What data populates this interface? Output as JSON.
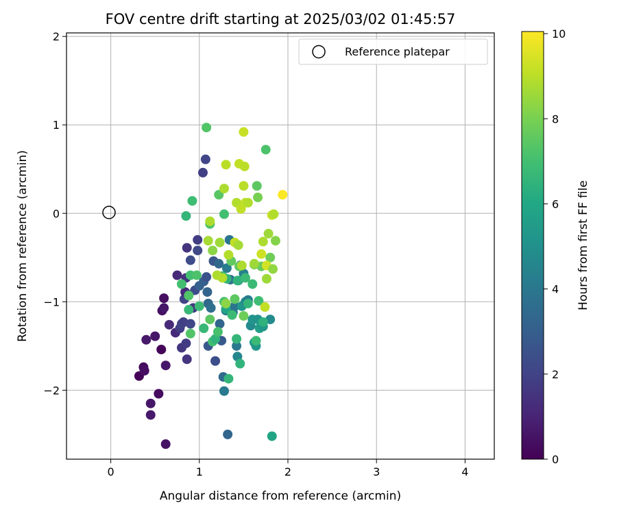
{
  "chart_data": {
    "type": "scatter",
    "title": "FOV centre drift starting at 2025/03/02 01:45:57",
    "xlabel": "Angular distance from reference (arcmin)",
    "ylabel": "Rotation from reference (arcmin)",
    "xlim": [
      -0.5,
      4.33
    ],
    "ylim": [
      -2.78,
      2.04
    ],
    "xticks": [
      0,
      1,
      2,
      3,
      4
    ],
    "yticks": [
      -2,
      -1,
      0,
      1,
      2
    ],
    "xtick_labels": [
      "0",
      "1",
      "2",
      "3",
      "4"
    ],
    "ytick_labels": [
      "−2",
      "−1",
      "0",
      "1",
      "2"
    ],
    "grid": true,
    "legend": {
      "position": "top-right",
      "label": "Reference platepar"
    },
    "reference_point": {
      "x": 0,
      "y": 0
    },
    "colorbar": {
      "label": "Hours from first FF file",
      "colormap": "viridis",
      "range": [
        0,
        10.05
      ],
      "ticks": [
        0,
        2,
        4,
        6,
        8,
        10
      ],
      "tick_labels": [
        "0",
        "2",
        "4",
        "6",
        "8",
        "10"
      ]
    },
    "points": [
      [
        0.32,
        -1.84,
        0.05
      ],
      [
        0.37,
        -1.74,
        0.3
      ],
      [
        0.38,
        -1.78,
        0.4
      ],
      [
        0.4,
        -1.43,
        0.7
      ],
      [
        0.45,
        -2.15,
        0.6
      ],
      [
        0.45,
        -2.28,
        0.7
      ],
      [
        0.5,
        -1.39,
        0.6
      ],
      [
        0.54,
        -2.04,
        0.3
      ],
      [
        0.57,
        -1.54,
        0.1
      ],
      [
        0.58,
        -1.1,
        0.4
      ],
      [
        0.6,
        -0.96,
        0.4
      ],
      [
        0.6,
        -1.07,
        0.6
      ],
      [
        0.62,
        -2.61,
        0.5
      ],
      [
        0.62,
        -1.72,
        0.6
      ],
      [
        0.66,
        -1.26,
        1.2
      ],
      [
        0.73,
        -1.35,
        1.2
      ],
      [
        0.75,
        -0.7,
        1.2
      ],
      [
        0.78,
        -1.3,
        1.8
      ],
      [
        0.8,
        -1.25,
        2.0
      ],
      [
        0.8,
        -1.52,
        1.6
      ],
      [
        0.82,
        -1.23,
        1.9
      ],
      [
        0.83,
        -0.97,
        2.0
      ],
      [
        0.84,
        -0.89,
        1.2
      ],
      [
        0.85,
        -0.73,
        1.5
      ],
      [
        0.85,
        -1.47,
        1.8
      ],
      [
        0.86,
        -1.65,
        1.5
      ],
      [
        0.86,
        -0.39,
        1.5
      ],
      [
        0.9,
        -0.53,
        2.3
      ],
      [
        0.9,
        -1.25,
        2.1
      ],
      [
        0.88,
        -0.92,
        2.0
      ],
      [
        0.93,
        -1.07,
        1.6
      ],
      [
        0.95,
        -0.87,
        2.3
      ],
      [
        0.98,
        -0.3,
        1.8
      ],
      [
        0.98,
        -0.42,
        2.2
      ],
      [
        1.0,
        -0.82,
        3.1
      ],
      [
        1.04,
        0.46,
        1.9
      ],
      [
        1.05,
        -0.77,
        3.0
      ],
      [
        1.07,
        0.61,
        2.1
      ],
      [
        1.08,
        -0.72,
        2.5
      ],
      [
        1.09,
        -0.89,
        3.2
      ],
      [
        1.1,
        -1.5,
        2.7
      ],
      [
        1.1,
        -1.02,
        3.4
      ],
      [
        1.13,
        -1.07,
        3.6
      ],
      [
        1.16,
        -0.54,
        2.7
      ],
      [
        1.18,
        -1.67,
        2.4
      ],
      [
        1.22,
        -0.57,
        3.4
      ],
      [
        1.23,
        -1.25,
        3.3
      ],
      [
        1.25,
        -1.44,
        2.8
      ],
      [
        1.27,
        -1.85,
        3.5
      ],
      [
        1.28,
        -2.01,
        4.1
      ],
      [
        1.3,
        -1.1,
        4.1
      ],
      [
        1.31,
        -0.62,
        4.2
      ],
      [
        1.32,
        -2.5,
        3.3
      ],
      [
        1.34,
        -0.3,
        3.8
      ],
      [
        1.35,
        -0.75,
        3.7
      ],
      [
        1.38,
        -1.12,
        4.2
      ],
      [
        1.4,
        -1.05,
        3.9
      ],
      [
        1.42,
        -1.5,
        4.0
      ],
      [
        1.43,
        -1.62,
        4.6
      ],
      [
        1.44,
        -0.76,
        4.5
      ],
      [
        1.46,
        -0.59,
        3.3
      ],
      [
        1.48,
        -1.05,
        5.3
      ],
      [
        1.5,
        -0.68,
        4.4
      ],
      [
        1.52,
        -1.0,
        4.7
      ],
      [
        1.55,
        -0.98,
        4.2
      ],
      [
        1.58,
        -1.27,
        4.8
      ],
      [
        1.6,
        -1.2,
        5.2
      ],
      [
        1.62,
        -1.46,
        5.4
      ],
      [
        1.64,
        -1.5,
        5.3
      ],
      [
        1.66,
        -1.2,
        5.1
      ],
      [
        1.68,
        -1.3,
        5.6
      ],
      [
        1.7,
        -1.25,
        5.4
      ],
      [
        1.72,
        -1.28,
        5.3
      ],
      [
        1.8,
        -1.2,
        4.8
      ],
      [
        1.82,
        -2.52,
        5.9
      ],
      [
        0.8,
        -0.8,
        7.0
      ],
      [
        0.85,
        -0.03,
        6.6
      ],
      [
        0.88,
        -0.93,
        7.3
      ],
      [
        0.88,
        -1.09,
        6.7
      ],
      [
        0.9,
        -0.7,
        7.0
      ],
      [
        0.9,
        -1.36,
        7.3
      ],
      [
        0.92,
        0.14,
        6.9
      ],
      [
        0.97,
        -0.7,
        7.2
      ],
      [
        1.0,
        -1.05,
        6.8
      ],
      [
        1.05,
        -1.3,
        6.7
      ],
      [
        1.08,
        0.97,
        7.3
      ],
      [
        1.12,
        -0.12,
        7.2
      ],
      [
        1.12,
        -1.2,
        7.5
      ],
      [
        1.15,
        -1.45,
        7.0
      ],
      [
        1.18,
        -1.42,
        6.5
      ],
      [
        1.21,
        -1.34,
        7.1
      ],
      [
        1.22,
        0.21,
        7.4
      ],
      [
        1.26,
        -0.71,
        6.6
      ],
      [
        1.28,
        -1.0,
        7.1
      ],
      [
        1.28,
        -0.01,
        7.0
      ],
      [
        1.3,
        -1.08,
        5.9
      ],
      [
        1.31,
        -0.74,
        6.5
      ],
      [
        1.33,
        -1.87,
        6.6
      ],
      [
        1.36,
        -0.54,
        7.6
      ],
      [
        1.37,
        -1.15,
        6.8
      ],
      [
        1.4,
        -0.97,
        7.5
      ],
      [
        1.42,
        -1.42,
        6.6
      ],
      [
        1.43,
        -0.76,
        6.5
      ],
      [
        1.45,
        -0.6,
        7.6
      ],
      [
        1.46,
        -1.7,
        6.5
      ],
      [
        1.5,
        -1.16,
        7.8
      ],
      [
        1.52,
        -0.73,
        6.8
      ],
      [
        1.55,
        -1.02,
        6.6
      ],
      [
        1.6,
        -0.8,
        6.8
      ],
      [
        1.62,
        -0.58,
        7.9
      ],
      [
        1.64,
        -1.44,
        6.8
      ],
      [
        1.65,
        0.31,
        7.5
      ],
      [
        1.66,
        0.18,
        8.0
      ],
      [
        1.67,
        -0.99,
        6.9
      ],
      [
        1.7,
        -0.6,
        7.7
      ],
      [
        1.72,
        -1.23,
        6.4
      ],
      [
        1.75,
        0.72,
        7.2
      ],
      [
        1.76,
        -0.74,
        8.6
      ],
      [
        1.78,
        -0.23,
        8.6
      ],
      [
        1.8,
        -0.5,
        7.8
      ],
      [
        1.86,
        -0.31,
        8.2
      ],
      [
        1.1,
        -0.31,
        8.7
      ],
      [
        1.12,
        -0.09,
        8.8
      ],
      [
        1.15,
        -0.42,
        8.3
      ],
      [
        1.2,
        -0.7,
        8.8
      ],
      [
        1.23,
        -0.33,
        8.6
      ],
      [
        1.26,
        -0.73,
        8.9
      ],
      [
        1.28,
        0.28,
        8.8
      ],
      [
        1.3,
        -1.02,
        8.3
      ],
      [
        1.3,
        0.55,
        9.0
      ],
      [
        1.33,
        -0.47,
        8.9
      ],
      [
        1.4,
        -0.33,
        9.1
      ],
      [
        1.42,
        0.12,
        8.9
      ],
      [
        1.44,
        -0.36,
        8.7
      ],
      [
        1.45,
        0.56,
        9.1
      ],
      [
        1.47,
        0.05,
        9.1
      ],
      [
        1.48,
        -0.59,
        8.8
      ],
      [
        1.5,
        0.92,
        9.2
      ],
      [
        1.5,
        0.31,
        9.0
      ],
      [
        1.51,
        0.53,
        9.0
      ],
      [
        1.52,
        0.12,
        9.1
      ],
      [
        1.55,
        0.12,
        8.9
      ],
      [
        1.62,
        -0.57,
        8.6
      ],
      [
        1.7,
        -0.46,
        9.3
      ],
      [
        1.72,
        -0.32,
        8.8
      ],
      [
        1.74,
        -1.06,
        9.1
      ],
      [
        1.76,
        -0.59,
        9.4
      ],
      [
        1.82,
        -0.02,
        9.2
      ],
      [
        1.83,
        -0.63,
        8.4
      ],
      [
        1.84,
        -0.01,
        8.9
      ],
      [
        1.94,
        0.21,
        10.0
      ]
    ]
  }
}
